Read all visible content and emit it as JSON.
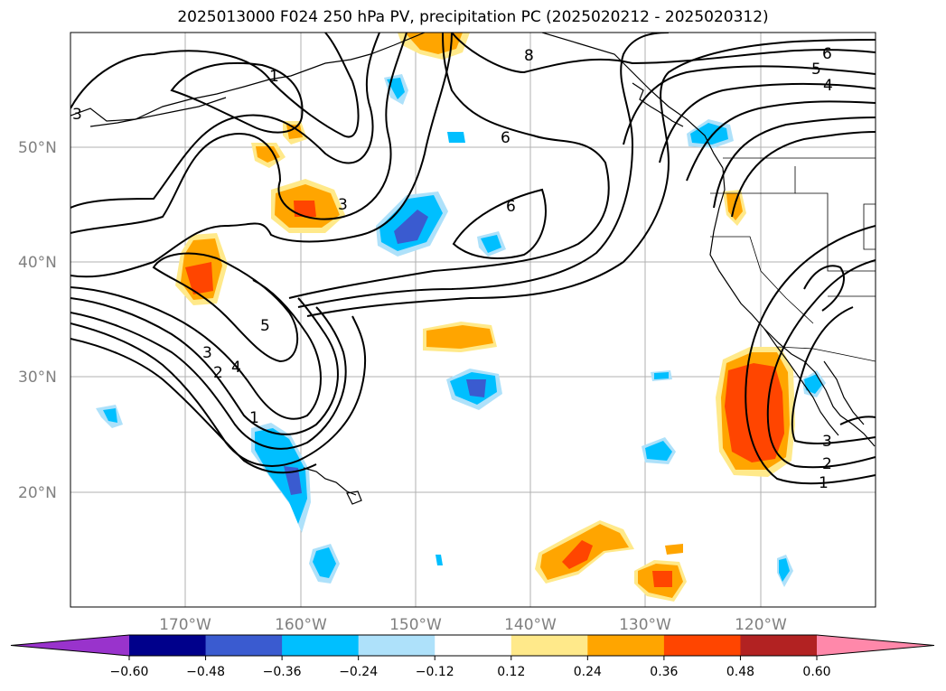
{
  "title": "2025013000 F024 250 hPa PV, precipitation PC (2025020212 - 2025020312)",
  "map": {
    "lat_labels": [
      "50°N",
      "40°N",
      "30°N",
      "20°N"
    ],
    "lon_labels": [
      "170°W",
      "160°W",
      "150°W",
      "140°W",
      "130°W",
      "120°W"
    ],
    "contour_labels": [
      "1",
      "2",
      "3",
      "4",
      "5",
      "6",
      "8"
    ]
  },
  "colorbar": {
    "ticks": [
      "−0.60",
      "−0.48",
      "−0.36",
      "−0.24",
      "−0.12",
      "0.12",
      "0.24",
      "0.36",
      "0.48",
      "0.60"
    ],
    "colors": [
      "#9933cc",
      "#00008b",
      "#3a5bd0",
      "#00bfff",
      "#aee1fa",
      "#ffffff",
      "#ffe98a",
      "#ffa500",
      "#ff4500",
      "#b22222",
      "#ff88aa"
    ]
  },
  "colors": {
    "contour": "#000000",
    "coast": "#000000",
    "grid": "#b0b0b0"
  }
}
